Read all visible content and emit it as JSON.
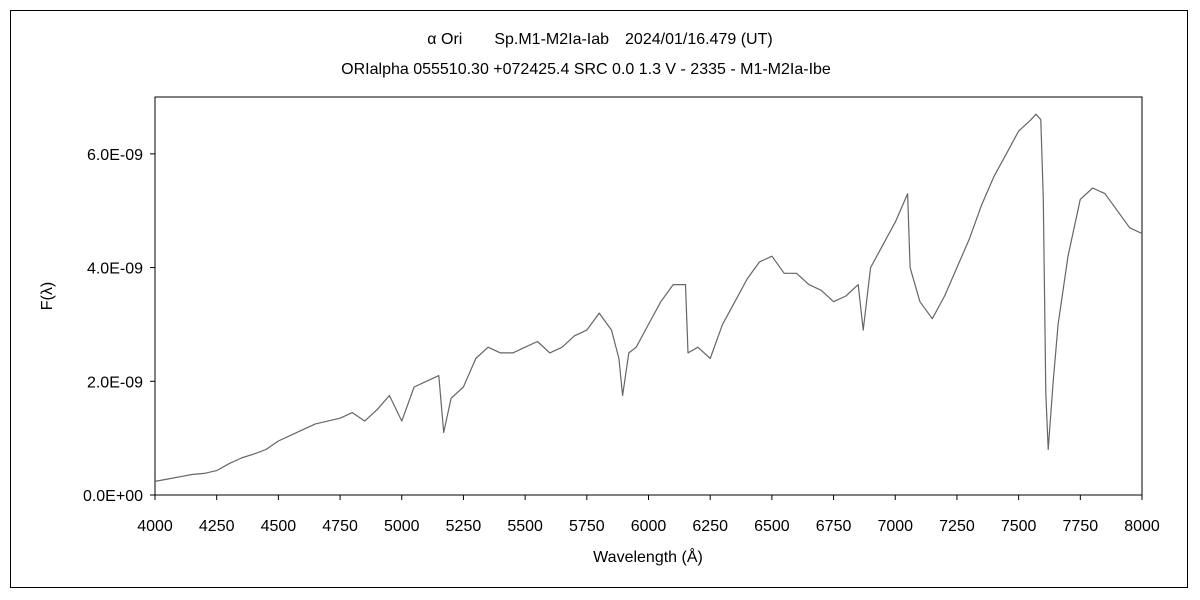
{
  "chart_data": {
    "type": "line",
    "title": "α Ori　　Sp.M1-M2Ia-Iab　2024/01/16.479 (UT)",
    "subtitle": "ORIalpha 055510.30 +072425.4 SRC 0.0 1.3 V - 2335 - M1-M2Ia-Ibe",
    "xlabel": "Wavelength (Å)",
    "ylabel": "F(λ)",
    "xlim": [
      4000,
      8000
    ],
    "ylim": [
      0,
      7e-09
    ],
    "xticks": [
      "4000",
      "4250",
      "4500",
      "4750",
      "5000",
      "5250",
      "5500",
      "5750",
      "6000",
      "6250",
      "6500",
      "6750",
      "7000",
      "7250",
      "7500",
      "7750",
      "8000"
    ],
    "yticks": [
      "0.0E+00",
      "2.0E-09",
      "4.0E-09",
      "6.0E-09"
    ],
    "ytick_values": [
      0,
      2e-09,
      4e-09,
      6e-09
    ],
    "grid": false,
    "line_color": "#666666",
    "series": [
      {
        "x": [
          4000,
          4050,
          4100,
          4150,
          4200,
          4250,
          4300,
          4350,
          4400,
          4450,
          4500,
          4550,
          4600,
          4650,
          4700,
          4750,
          4800,
          4850,
          4900,
          4950,
          5000,
          5050,
          5100,
          5150,
          5170,
          5200,
          5250,
          5300,
          5350,
          5400,
          5450,
          5500,
          5550,
          5600,
          5650,
          5700,
          5750,
          5800,
          5850,
          5880,
          5895,
          5920,
          5950,
          6000,
          6050,
          6100,
          6150,
          6160,
          6200,
          6250,
          6300,
          6350,
          6400,
          6450,
          6500,
          6550,
          6600,
          6650,
          6700,
          6750,
          6800,
          6850,
          6870,
          6900,
          6950,
          7000,
          7050,
          7060,
          7100,
          7150,
          7200,
          7250,
          7300,
          7350,
          7400,
          7450,
          7500,
          7550,
          7570,
          7590,
          7600,
          7610,
          7620,
          7640,
          7660,
          7700,
          7750,
          7800,
          7850,
          7900,
          7950,
          8000
        ],
        "y": [
          2.4e-10,
          2.8e-10,
          3.2e-10,
          3.6e-10,
          3.8e-10,
          4.3e-10,
          5.5e-10,
          6.5e-10,
          7.2e-10,
          8e-10,
          9.5e-10,
          1.05e-09,
          1.15e-09,
          1.25e-09,
          1.3e-09,
          1.35e-09,
          1.45e-09,
          1.3e-09,
          1.5e-09,
          1.75e-09,
          1.3e-09,
          1.9e-09,
          2e-09,
          2.1e-09,
          1.1e-09,
          1.7e-09,
          1.9e-09,
          2.4e-09,
          2.6e-09,
          2.5e-09,
          2.5e-09,
          2.6e-09,
          2.7e-09,
          2.5e-09,
          2.6e-09,
          2.8e-09,
          2.9e-09,
          3.2e-09,
          2.9e-09,
          2.4e-09,
          1.75e-09,
          2.5e-09,
          2.6e-09,
          3e-09,
          3.4e-09,
          3.7e-09,
          3.7e-09,
          2.5e-09,
          2.6e-09,
          2.4e-09,
          3e-09,
          3.4e-09,
          3.8e-09,
          4.1e-09,
          4.2e-09,
          3.9e-09,
          3.9e-09,
          3.7e-09,
          3.6e-09,
          3.4e-09,
          3.5e-09,
          3.7e-09,
          2.9e-09,
          4e-09,
          4.4e-09,
          4.8e-09,
          5.3e-09,
          4e-09,
          3.4e-09,
          3.1e-09,
          3.5e-09,
          4e-09,
          4.5e-09,
          5.1e-09,
          5.6e-09,
          6e-09,
          6.4e-09,
          6.6e-09,
          6.7e-09,
          6.6e-09,
          5.2e-09,
          1.8e-09,
          8e-10,
          2e-09,
          3e-09,
          4.2e-09,
          5.2e-09,
          5.4e-09,
          5.3e-09,
          5e-09,
          4.7e-09,
          4.6e-09
        ]
      }
    ]
  }
}
